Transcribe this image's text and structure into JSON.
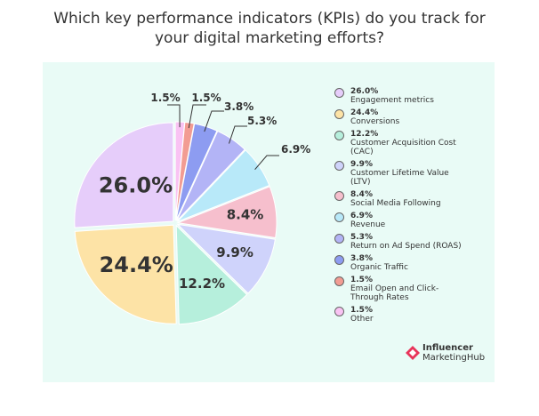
{
  "title_line1": "Which key performance indicators (KPIs) do you track for",
  "title_line2": "your digital marketing efforts?",
  "chart_data": {
    "type": "pie",
    "title": "Which key performance indicators (KPIs) do you track for your digital marketing efforts?",
    "unit": "%",
    "legend_position": "right",
    "slices": [
      {
        "label": "Engagement metrics",
        "value": 26.0,
        "display": "26.0%",
        "color": "#e6cdfa"
      },
      {
        "label": "Conversions",
        "value": 24.4,
        "display": "24.4%",
        "color": "#fde3a6"
      },
      {
        "label": "Customer Acquisition Cost (CAC)",
        "value": 12.2,
        "display": "12.2%",
        "color": "#b6efdc"
      },
      {
        "label": "Customer Lifetime Value (LTV)",
        "value": 9.9,
        "display": "9.9%",
        "color": "#cfd3fb"
      },
      {
        "label": "Social Media Following",
        "value": 8.4,
        "display": "8.4%",
        "color": "#f6bfcd"
      },
      {
        "label": "Revenue",
        "value": 6.9,
        "display": "6.9%",
        "color": "#b8e9f9"
      },
      {
        "label": "Return on Ad Spend (ROAS)",
        "value": 5.3,
        "display": "5.3%",
        "color": "#b3b4f6"
      },
      {
        "label": "Organic Traffic",
        "value": 3.8,
        "display": "3.8%",
        "color": "#8d9cf1"
      },
      {
        "label": "Email Open and Click-Through Rates",
        "value": 1.5,
        "display": "1.5%",
        "color": "#f29c93"
      },
      {
        "label": "Other",
        "value": 1.5,
        "display": "1.5%",
        "color": "#f9c3f3"
      }
    ]
  },
  "legend_lines": [
    [
      "Engagement metrics"
    ],
    [
      "Conversions"
    ],
    [
      "Customer Acquisition",
      "Cost (CAC)"
    ],
    [
      "Customer Lifetime Value",
      "(LTV)"
    ],
    [
      "Social Media Following"
    ],
    [
      "Revenue"
    ],
    [
      "Return on Ad Spend",
      "(ROAS)"
    ],
    [
      "Organic Traffic"
    ],
    [
      "Email Open and Click-",
      "Through Rates"
    ],
    [
      "Other"
    ]
  ],
  "brand": {
    "line1": "Influencer",
    "line2": "MarketingHub",
    "accent_color": "#e8345a"
  }
}
